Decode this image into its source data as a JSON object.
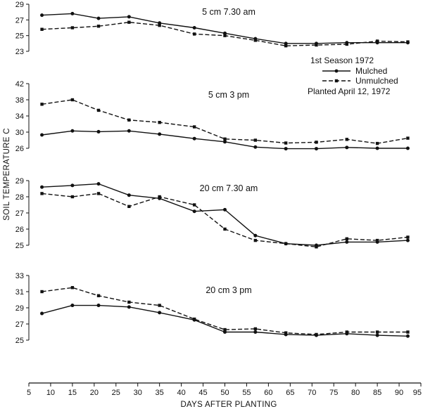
{
  "figure": {
    "ylabel": "SOIL TEMPERATURE C",
    "xlabel": "DAYS AFTER PLANTING",
    "legend_title": "1st Season 1972",
    "legend_note": "Planted April 12, 1972",
    "series_names": [
      "Mulched",
      "Unmulched"
    ],
    "x_ticks": [
      5,
      10,
      15,
      20,
      25,
      30,
      35,
      40,
      45,
      50,
      55,
      60,
      65,
      70,
      75,
      80,
      85,
      90,
      95
    ]
  },
  "colors": {
    "line": "#111111",
    "background": "#ffffff"
  },
  "chart_data": [
    {
      "type": "line",
      "title": "5 cm 7.30 am",
      "x": [
        8,
        15,
        21,
        28,
        35,
        43,
        50,
        57,
        64,
        71,
        78,
        85,
        92
      ],
      "ylim": [
        23,
        29
      ],
      "yticks": [
        23,
        25,
        27,
        29
      ],
      "series": [
        {
          "name": "Mulched",
          "style": "solid",
          "values": [
            27.6,
            27.8,
            27.2,
            27.4,
            26.6,
            26.0,
            25.3,
            24.6,
            24.0,
            24.0,
            24.1,
            24.1,
            24.1
          ]
        },
        {
          "name": "Unmulched",
          "style": "dashed",
          "values": [
            25.8,
            26.0,
            26.2,
            26.7,
            26.3,
            25.2,
            25.0,
            24.4,
            23.7,
            23.8,
            23.9,
            24.3,
            24.2
          ]
        }
      ]
    },
    {
      "type": "line",
      "title": "5 cm 3 pm",
      "x": [
        8,
        15,
        21,
        28,
        35,
        43,
        50,
        57,
        64,
        71,
        78,
        85,
        92
      ],
      "ylim": [
        26,
        42
      ],
      "yticks": [
        26,
        30,
        34,
        38,
        42
      ],
      "series": [
        {
          "name": "Mulched",
          "style": "solid",
          "values": [
            29.3,
            30.3,
            30.1,
            30.3,
            29.5,
            28.4,
            27.6,
            26.3,
            25.9,
            25.9,
            26.2,
            26.0,
            26.0
          ]
        },
        {
          "name": "Unmulched",
          "style": "dashed",
          "values": [
            36.9,
            38.0,
            35.4,
            33.0,
            32.4,
            31.3,
            28.3,
            28.0,
            27.3,
            27.5,
            28.2,
            27.2,
            28.5
          ]
        }
      ]
    },
    {
      "type": "line",
      "title": "20 cm 7.30 am",
      "x": [
        8,
        15,
        21,
        28,
        35,
        43,
        50,
        57,
        64,
        71,
        78,
        85,
        92
      ],
      "ylim": [
        25,
        29
      ],
      "yticks": [
        25,
        26,
        27,
        28,
        29
      ],
      "series": [
        {
          "name": "Mulched",
          "style": "solid",
          "values": [
            28.6,
            28.7,
            28.8,
            28.1,
            27.9,
            27.1,
            27.2,
            25.6,
            25.1,
            25.0,
            25.2,
            25.2,
            25.3
          ]
        },
        {
          "name": "Unmulched",
          "style": "dashed",
          "values": [
            28.2,
            28.0,
            28.2,
            27.4,
            28.0,
            27.5,
            26.0,
            25.3,
            25.1,
            24.9,
            25.4,
            25.3,
            25.5
          ]
        }
      ]
    },
    {
      "type": "line",
      "title": "20 cm 3 pm",
      "x": [
        8,
        15,
        21,
        28,
        35,
        43,
        50,
        57,
        64,
        71,
        78,
        85,
        92
      ],
      "ylim": [
        25,
        33
      ],
      "yticks": [
        25,
        27,
        29,
        31,
        33
      ],
      "series": [
        {
          "name": "Mulched",
          "style": "solid",
          "values": [
            28.3,
            29.3,
            29.3,
            29.1,
            28.4,
            27.5,
            26.0,
            26.0,
            25.7,
            25.6,
            25.8,
            25.6,
            25.5
          ]
        },
        {
          "name": "Unmulched",
          "style": "dashed",
          "values": [
            31.0,
            31.5,
            30.5,
            29.7,
            29.3,
            27.6,
            26.3,
            26.4,
            25.9,
            25.7,
            26.0,
            26.0,
            26.0
          ]
        }
      ]
    }
  ]
}
